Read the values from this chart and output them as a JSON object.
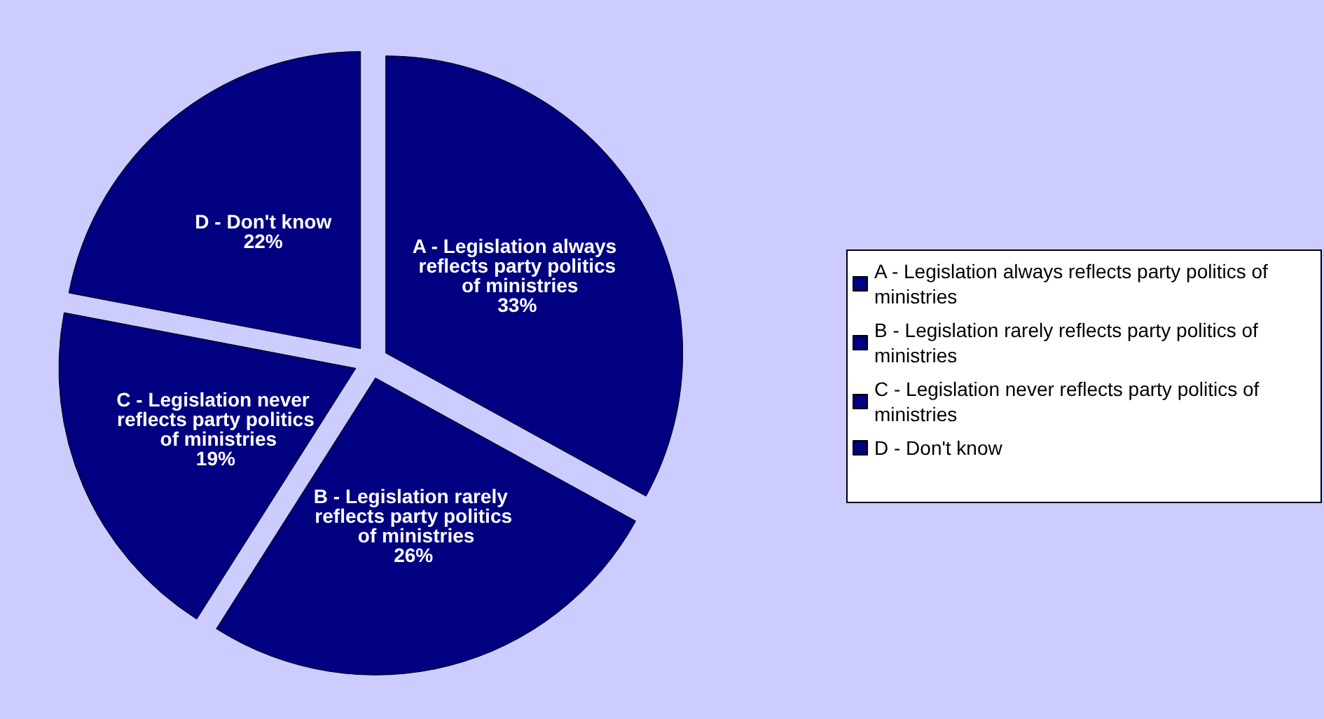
{
  "chart_data": {
    "type": "pie",
    "categories": [
      "A - Legislation always reflects party politics of ministries",
      "B - Legislation rarely reflects party politics of ministries",
      "C - Legislation never reflects party politics of ministries",
      "D - Don't know"
    ],
    "values": [
      33,
      26,
      19,
      22
    ],
    "colors": [
      "#000080",
      "#000080",
      "#000080",
      "#000080"
    ],
    "value_labels": [
      "33%",
      "26%",
      "19%",
      "22%"
    ],
    "legend": "right"
  }
}
